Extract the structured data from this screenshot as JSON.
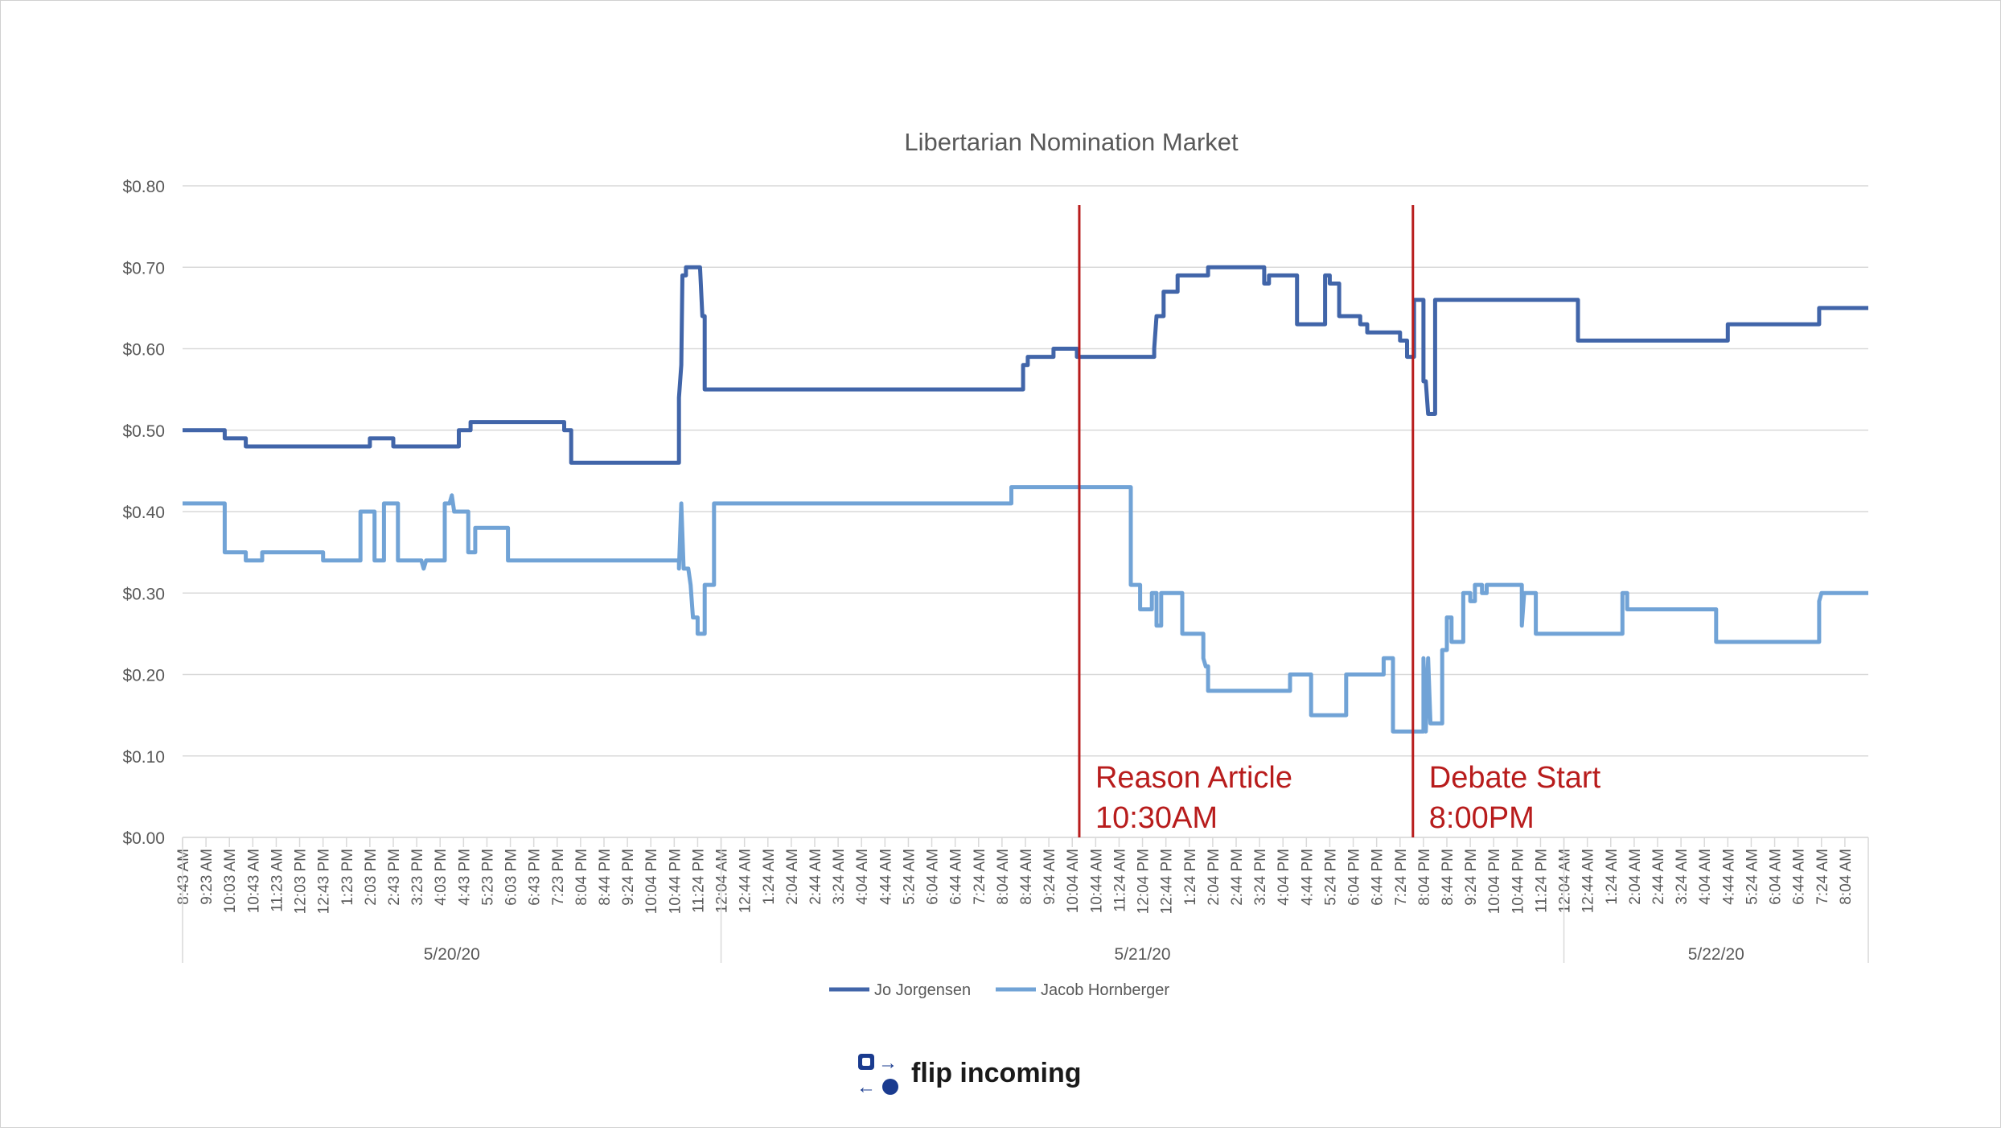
{
  "chart_data": {
    "type": "line",
    "title": "Libertarian Nomination Market",
    "ylim": [
      0,
      0.8
    ],
    "y_ticks": [
      "$0.00",
      "$0.10",
      "$0.20",
      "$0.30",
      "$0.40",
      "$0.50",
      "$0.60",
      "$0.70",
      "$0.80"
    ],
    "y_tick_values": [
      0,
      0.1,
      0.2,
      0.3,
      0.4,
      0.5,
      0.6,
      0.7,
      0.8
    ],
    "grid": true,
    "legend_position": "bottom",
    "time_labels": [
      "8:43 AM",
      "9:23 AM",
      "10:03 AM",
      "10:43 AM",
      "11:23 AM",
      "12:03 PM",
      "12:43 PM",
      "1:23 PM",
      "2:03 PM",
      "2:43 PM",
      "3:23 PM",
      "4:03 PM",
      "4:43 PM",
      "5:23 PM",
      "6:03 PM",
      "6:43 PM",
      "7:23 PM",
      "8:04 PM",
      "8:44 PM",
      "9:24 PM",
      "10:04 PM",
      "10:44 PM",
      "11:24 PM",
      "12:04 AM",
      "12:44 AM",
      "1:24 AM",
      "2:04 AM",
      "2:44 AM",
      "3:24 AM",
      "4:04 AM",
      "4:44 AM",
      "5:24 AM",
      "6:04 AM",
      "6:44 AM",
      "7:24 AM",
      "8:04 AM",
      "8:44 AM",
      "9:24 AM",
      "10:04 AM",
      "10:44 AM",
      "11:24 AM",
      "12:04 PM",
      "12:44 PM",
      "1:24 PM",
      "2:04 PM",
      "2:44 PM",
      "3:24 PM",
      "4:04 PM",
      "4:44 PM",
      "5:24 PM",
      "6:04 PM",
      "6:44 PM",
      "7:24 PM",
      "8:04 PM",
      "8:44 PM",
      "9:24 PM",
      "10:04 PM",
      "10:44 PM",
      "11:24 PM",
      "12:04 AM",
      "12:44 AM",
      "1:24 AM",
      "2:04 AM",
      "2:44 AM",
      "3:24 AM",
      "4:04 AM",
      "4:44 AM",
      "5:24 AM",
      "6:04 AM",
      "6:44 AM",
      "7:24 AM",
      "8:04 AM"
    ],
    "date_groups": [
      {
        "label": "5/20/20",
        "start": 0,
        "end": 23
      },
      {
        "label": "5/21/20",
        "start": 23,
        "end": 59
      },
      {
        "label": "5/22/20",
        "start": 59,
        "end": 72
      }
    ],
    "x_range": [
      0,
      72
    ],
    "series": [
      {
        "name": "Jo Jorgensen",
        "color": "#4165a9",
        "points": [
          [
            0,
            0.5
          ],
          [
            1.8,
            0.5
          ],
          [
            1.8,
            0.49
          ],
          [
            2.7,
            0.49
          ],
          [
            2.7,
            0.48
          ],
          [
            8,
            0.48
          ],
          [
            8,
            0.49
          ],
          [
            9,
            0.49
          ],
          [
            9,
            0.48
          ],
          [
            11.8,
            0.48
          ],
          [
            11.8,
            0.5
          ],
          [
            12.3,
            0.5
          ],
          [
            12.3,
            0.51
          ],
          [
            16.3,
            0.51
          ],
          [
            16.3,
            0.5
          ],
          [
            16.6,
            0.5
          ],
          [
            16.6,
            0.46
          ],
          [
            21.2,
            0.46
          ],
          [
            21.2,
            0.54
          ],
          [
            21.3,
            0.58
          ],
          [
            21.35,
            0.69
          ],
          [
            21.5,
            0.69
          ],
          [
            21.5,
            0.7
          ],
          [
            22.1,
            0.7
          ],
          [
            22.2,
            0.64
          ],
          [
            22.3,
            0.64
          ],
          [
            22.3,
            0.55
          ],
          [
            35.9,
            0.55
          ],
          [
            35.9,
            0.58
          ],
          [
            36.1,
            0.58
          ],
          [
            36.1,
            0.59
          ],
          [
            37.2,
            0.59
          ],
          [
            37.2,
            0.6
          ],
          [
            38.2,
            0.6
          ],
          [
            38.2,
            0.59
          ],
          [
            41.5,
            0.59
          ],
          [
            41.5,
            0.6
          ],
          [
            41.6,
            0.64
          ],
          [
            41.9,
            0.64
          ],
          [
            41.9,
            0.67
          ],
          [
            42.5,
            0.67
          ],
          [
            42.5,
            0.69
          ],
          [
            43.8,
            0.69
          ],
          [
            43.8,
            0.7
          ],
          [
            46.2,
            0.7
          ],
          [
            46.2,
            0.68
          ],
          [
            46.4,
            0.68
          ],
          [
            46.4,
            0.69
          ],
          [
            47.6,
            0.69
          ],
          [
            47.6,
            0.63
          ],
          [
            48.8,
            0.63
          ],
          [
            48.8,
            0.69
          ],
          [
            49,
            0.69
          ],
          [
            49,
            0.68
          ],
          [
            49.4,
            0.68
          ],
          [
            49.4,
            0.64
          ],
          [
            50.3,
            0.64
          ],
          [
            50.3,
            0.63
          ],
          [
            50.6,
            0.63
          ],
          [
            50.6,
            0.62
          ],
          [
            52,
            0.62
          ],
          [
            52,
            0.61
          ],
          [
            52.3,
            0.61
          ],
          [
            52.3,
            0.59
          ],
          [
            52.6,
            0.59
          ],
          [
            52.6,
            0.66
          ],
          [
            53,
            0.66
          ],
          [
            53,
            0.56
          ],
          [
            53.1,
            0.56
          ],
          [
            53.2,
            0.52
          ],
          [
            53.5,
            0.52
          ],
          [
            53.5,
            0.66
          ],
          [
            59.6,
            0.66
          ],
          [
            59.6,
            0.61
          ],
          [
            66,
            0.61
          ],
          [
            66,
            0.63
          ],
          [
            69.9,
            0.63
          ],
          [
            69.9,
            0.65
          ],
          [
            72,
            0.65
          ]
        ]
      },
      {
        "name": "Jacob Hornberger",
        "color": "#71a3d6",
        "points": [
          [
            0,
            0.41
          ],
          [
            1.8,
            0.41
          ],
          [
            1.8,
            0.35
          ],
          [
            2.7,
            0.35
          ],
          [
            2.7,
            0.34
          ],
          [
            3.4,
            0.34
          ],
          [
            3.4,
            0.35
          ],
          [
            6,
            0.35
          ],
          [
            6,
            0.34
          ],
          [
            7.6,
            0.34
          ],
          [
            7.6,
            0.4
          ],
          [
            8.2,
            0.4
          ],
          [
            8.2,
            0.34
          ],
          [
            8.6,
            0.34
          ],
          [
            8.6,
            0.41
          ],
          [
            9.2,
            0.41
          ],
          [
            9.2,
            0.34
          ],
          [
            10.2,
            0.34
          ],
          [
            10.3,
            0.33
          ],
          [
            10.4,
            0.34
          ],
          [
            11.2,
            0.34
          ],
          [
            11.2,
            0.41
          ],
          [
            11.4,
            0.41
          ],
          [
            11.5,
            0.42
          ],
          [
            11.6,
            0.4
          ],
          [
            12.2,
            0.4
          ],
          [
            12.2,
            0.35
          ],
          [
            12.5,
            0.35
          ],
          [
            12.5,
            0.38
          ],
          [
            13.9,
            0.38
          ],
          [
            13.9,
            0.34
          ],
          [
            21.2,
            0.34
          ],
          [
            21.2,
            0.33
          ],
          [
            21.3,
            0.41
          ],
          [
            21.4,
            0.33
          ],
          [
            21.6,
            0.33
          ],
          [
            21.7,
            0.31
          ],
          [
            21.8,
            0.27
          ],
          [
            22,
            0.27
          ],
          [
            22,
            0.25
          ],
          [
            22.3,
            0.25
          ],
          [
            22.3,
            0.31
          ],
          [
            22.7,
            0.31
          ],
          [
            22.7,
            0.41
          ],
          [
            35.4,
            0.41
          ],
          [
            35.4,
            0.43
          ],
          [
            40.5,
            0.43
          ],
          [
            40.5,
            0.31
          ],
          [
            40.9,
            0.31
          ],
          [
            40.9,
            0.28
          ],
          [
            41.4,
            0.28
          ],
          [
            41.4,
            0.3
          ],
          [
            41.6,
            0.3
          ],
          [
            41.6,
            0.26
          ],
          [
            41.8,
            0.26
          ],
          [
            41.8,
            0.3
          ],
          [
            42.7,
            0.3
          ],
          [
            42.7,
            0.25
          ],
          [
            43.6,
            0.25
          ],
          [
            43.6,
            0.22
          ],
          [
            43.7,
            0.21
          ],
          [
            43.8,
            0.21
          ],
          [
            43.8,
            0.18
          ],
          [
            47.3,
            0.18
          ],
          [
            47.3,
            0.2
          ],
          [
            48.2,
            0.2
          ],
          [
            48.2,
            0.15
          ],
          [
            49.7,
            0.15
          ],
          [
            49.7,
            0.2
          ],
          [
            51.3,
            0.2
          ],
          [
            51.3,
            0.22
          ],
          [
            51.7,
            0.22
          ],
          [
            51.7,
            0.13
          ],
          [
            53,
            0.13
          ],
          [
            53,
            0.22
          ],
          [
            53.1,
            0.13
          ],
          [
            53.2,
            0.22
          ],
          [
            53.3,
            0.14
          ],
          [
            53.8,
            0.14
          ],
          [
            53.8,
            0.23
          ],
          [
            54,
            0.23
          ],
          [
            54,
            0.27
          ],
          [
            54.2,
            0.27
          ],
          [
            54.2,
            0.24
          ],
          [
            54.7,
            0.24
          ],
          [
            54.7,
            0.3
          ],
          [
            55,
            0.3
          ],
          [
            55,
            0.29
          ],
          [
            55.2,
            0.29
          ],
          [
            55.2,
            0.31
          ],
          [
            55.5,
            0.31
          ],
          [
            55.5,
            0.3
          ],
          [
            55.7,
            0.3
          ],
          [
            55.7,
            0.31
          ],
          [
            57.2,
            0.31
          ],
          [
            57.2,
            0.26
          ],
          [
            57.3,
            0.3
          ],
          [
            57.8,
            0.3
          ],
          [
            57.8,
            0.25
          ],
          [
            61.5,
            0.25
          ],
          [
            61.5,
            0.3
          ],
          [
            61.7,
            0.3
          ],
          [
            61.7,
            0.28
          ],
          [
            65.5,
            0.28
          ],
          [
            65.5,
            0.24
          ],
          [
            69.9,
            0.24
          ],
          [
            69.9,
            0.29
          ],
          [
            70,
            0.3
          ],
          [
            72,
            0.3
          ]
        ]
      }
    ],
    "annotations": [
      {
        "x": 38.3,
        "line1": "Reason Article",
        "line2": "10:30AM",
        "color": "#b81c1c"
      },
      {
        "x": 52.55,
        "line1": "Debate Start",
        "line2": "8:00PM",
        "color": "#b81c1c"
      }
    ],
    "logo": {
      "text": "flip incoming"
    }
  }
}
